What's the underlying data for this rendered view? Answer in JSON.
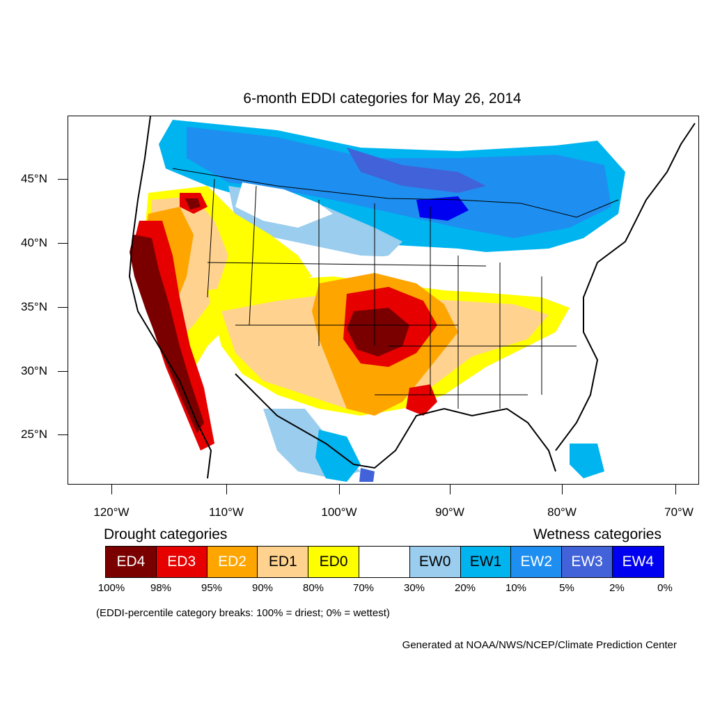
{
  "title": "6-month EDDI categories for May 26, 2014",
  "axes": {
    "y_labels": [
      "45°N",
      "40°N",
      "35°N",
      "30°N",
      "25°N"
    ],
    "x_labels": [
      "120°W",
      "110°W",
      "100°W",
      "90°W",
      "80°W",
      "70°W"
    ]
  },
  "legend": {
    "drought_heading": "Drought categories",
    "wetness_heading": "Wetness categories",
    "categories": [
      {
        "label": "ED4",
        "color": "#7a0000",
        "text_color": "#ffffff"
      },
      {
        "label": "ED3",
        "color": "#e60000",
        "text_color": "#ffffff"
      },
      {
        "label": "ED2",
        "color": "#ffa500",
        "text_color": "#ffffff"
      },
      {
        "label": "ED1",
        "color": "#ffd38f",
        "text_color": "#000000"
      },
      {
        "label": "ED0",
        "color": "#ffff00",
        "text_color": "#000000"
      },
      {
        "label": "",
        "color": "#ffffff",
        "text_color": "#000000"
      },
      {
        "label": "EW0",
        "color": "#9acdee",
        "text_color": "#000000"
      },
      {
        "label": "EW1",
        "color": "#00b4f0",
        "text_color": "#000000"
      },
      {
        "label": "EW2",
        "color": "#1e8ff0",
        "text_color": "#ffffff"
      },
      {
        "label": "EW3",
        "color": "#4162d8",
        "text_color": "#ffffff"
      },
      {
        "label": "EW4",
        "color": "#0000f0",
        "text_color": "#ffffff"
      }
    ],
    "percentiles": [
      "100%",
      "98%",
      "95%",
      "90%",
      "80%",
      "70%",
      "30%",
      "20%",
      "10%",
      "5%",
      "2%",
      "0%"
    ]
  },
  "note": "(EDDI-percentile category breaks: 100% = driest; 0% = wettest)",
  "credit": "Generated at NOAA/NWS/NCEP/Climate Prediction Center"
}
